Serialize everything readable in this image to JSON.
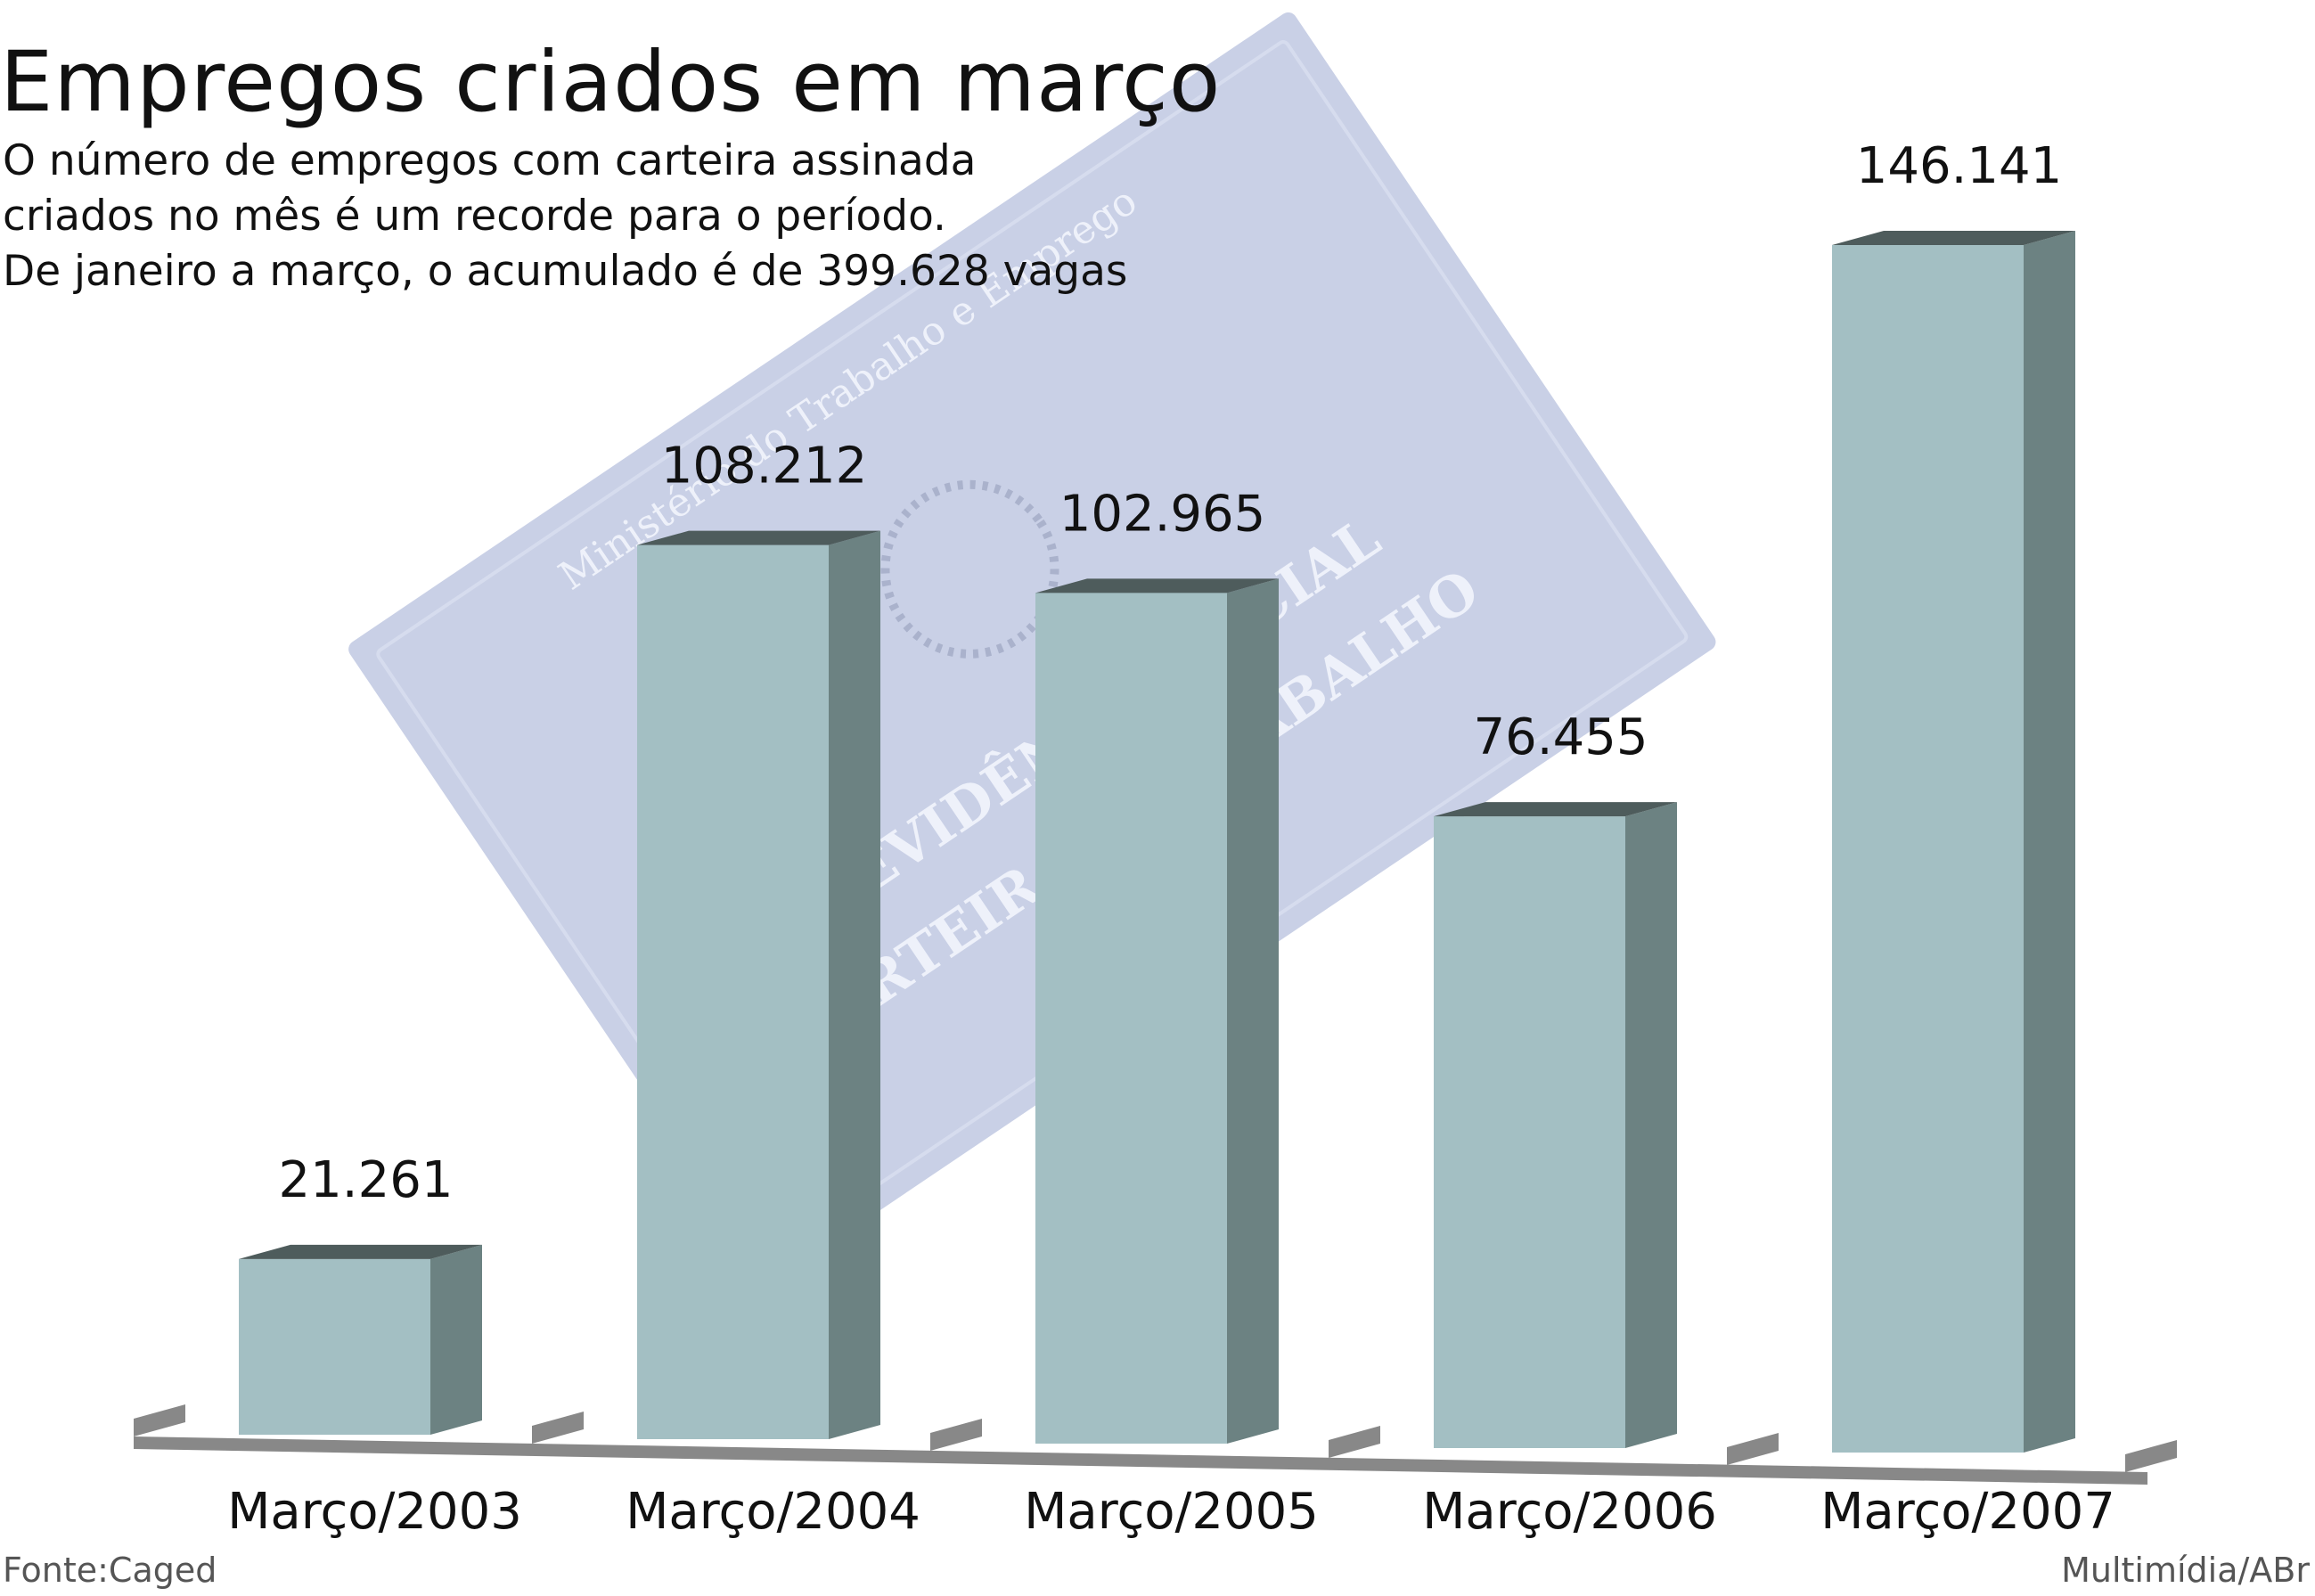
{
  "header": {
    "title": "Empregos criados em março",
    "subtitle_lines": [
      "O número de empregos com carteira assinada",
      "criados no mês é um recorde para o período.",
      "De janeiro a março, o acumulado é de 399.628 vagas"
    ]
  },
  "chart_data": {
    "type": "bar",
    "title": "Empregos criados em março",
    "xlabel": "",
    "ylabel": "",
    "categories": [
      "Março/2003",
      "Março/2004",
      "Março/2005",
      "Março/2006",
      "Março/2007"
    ],
    "values": [
      21261,
      108212,
      102965,
      76455,
      146141
    ],
    "value_labels": [
      "21.261",
      "108.212",
      "102.965",
      "76.455",
      "146.141"
    ],
    "ylim": [
      0,
      146141
    ],
    "grid": false,
    "legend": "none",
    "style": "3d"
  },
  "background": {
    "lines": [
      "Ministério do Trabalho e Emprego",
      "PREVIDÊNCIA SOCIAL",
      "CARTEIRA DE TRABALHO"
    ]
  },
  "colors": {
    "bar_front": "#a3bfc3",
    "bar_side": "#6c8282",
    "bar_top": "#4e5c5c",
    "floor": "#888888",
    "card": "#c9d0e6",
    "card_text": "#eef1fa"
  },
  "footer": {
    "source": "Fonte:Caged",
    "credit": "Multimídia/ABr"
  }
}
